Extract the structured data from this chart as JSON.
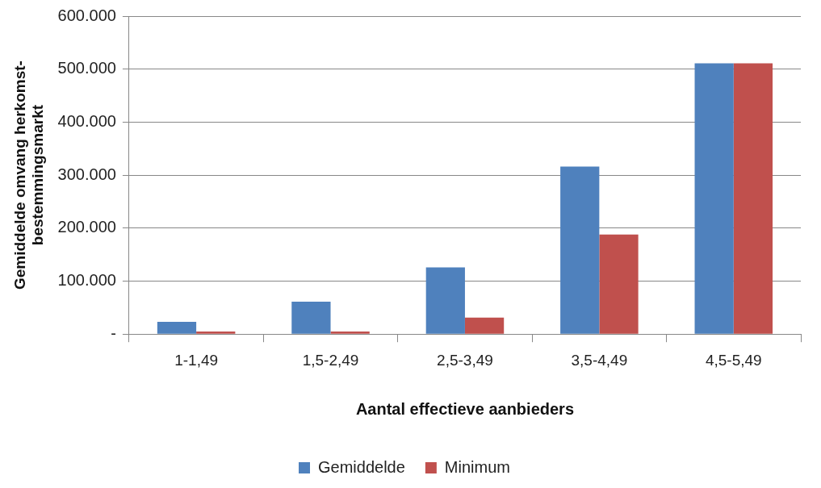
{
  "chart_data": {
    "type": "bar",
    "xlabel": "Aantal effectieve aanbieders",
    "ylabel": "Gemiddelde omvang herkomst-bestemmingsmarkt",
    "categories": [
      "1-1,49",
      "1,5-2,49",
      "2,5-3,49",
      "3,5-4,49",
      "4,5-5,49"
    ],
    "series": [
      {
        "name": "Gemiddelde",
        "color": "#4f81bd",
        "values": [
          23000,
          61000,
          126000,
          316000,
          511000
        ]
      },
      {
        "name": "Minimum",
        "color": "#c0504d",
        "values": [
          5000,
          5000,
          31000,
          188000,
          511000
        ]
      }
    ],
    "ylim": [
      0,
      600000
    ],
    "yticks": [
      {
        "value": 0,
        "label": "-"
      },
      {
        "value": 100000,
        "label": "100.000"
      },
      {
        "value": 200000,
        "label": "200.000"
      },
      {
        "value": 300000,
        "label": "300.000"
      },
      {
        "value": 400000,
        "label": "400.000"
      },
      {
        "value": 500000,
        "label": "500.000"
      },
      {
        "value": 600000,
        "label": "600.000"
      }
    ],
    "grid": "y",
    "legend": "bottom"
  }
}
